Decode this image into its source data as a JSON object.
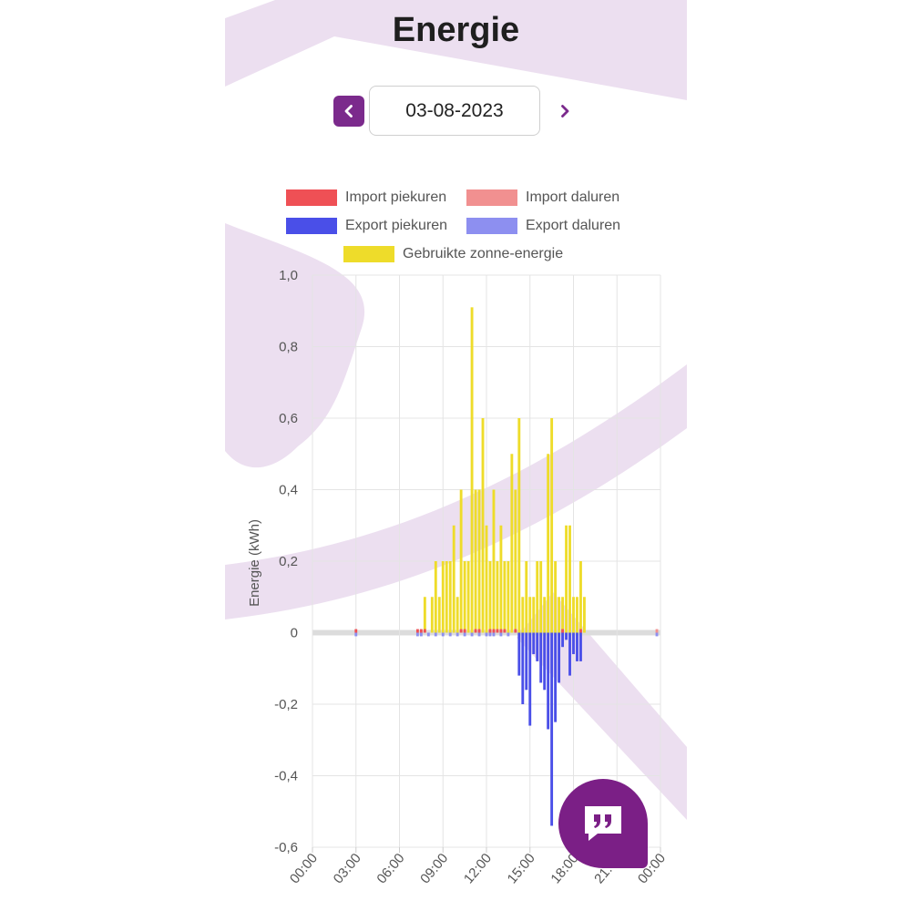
{
  "page": {
    "title": "Energie"
  },
  "date_nav": {
    "date": "03-08-2023",
    "prev_icon": "chevron-left-icon",
    "next_icon": "chevron-right-icon"
  },
  "colors": {
    "import_peak": "#ef5055",
    "import_offpeak": "#f19090",
    "export_peak": "#4a4fe8",
    "export_offpeak": "#8d8ff0",
    "solar": "#eedc2a",
    "accent": "#7b2a8c"
  },
  "fab": {
    "icon": "quote-chat-icon"
  },
  "chart_data": {
    "type": "bar",
    "title": "",
    "xlabel": "",
    "ylabel": "Energie (kWh)",
    "ylim": [
      -0.6,
      1.0
    ],
    "y_ticks": [
      "1,0",
      "0,8",
      "0,6",
      "0,4",
      "0,2",
      "0",
      "-0,2",
      "-0,4",
      "-0,6"
    ],
    "x_ticks": [
      "00:00",
      "03:00",
      "06:00",
      "09:00",
      "12:00",
      "15:00",
      "18:00",
      "21:00",
      "00:00"
    ],
    "x_range_hours": [
      0,
      24
    ],
    "interval_hours": 0.25,
    "legend_position": "top",
    "legend": [
      "Import piekuren",
      "Import daluren",
      "Export piekuren",
      "Export daluren",
      "Gebruikte zonne-energie"
    ],
    "series": [
      {
        "name": "Gebruikte zonne-energie",
        "points": [
          [
            7.75,
            0.1
          ],
          [
            8.25,
            0.1
          ],
          [
            8.5,
            0.2
          ],
          [
            8.75,
            0.1
          ],
          [
            9.0,
            0.2
          ],
          [
            9.25,
            0.2
          ],
          [
            9.5,
            0.2
          ],
          [
            9.75,
            0.3
          ],
          [
            10.0,
            0.1
          ],
          [
            10.25,
            0.4
          ],
          [
            10.5,
            0.2
          ],
          [
            10.75,
            0.2
          ],
          [
            11.0,
            0.91
          ],
          [
            11.25,
            0.4
          ],
          [
            11.5,
            0.4
          ],
          [
            11.75,
            0.6
          ],
          [
            12.0,
            0.3
          ],
          [
            12.25,
            0.2
          ],
          [
            12.5,
            0.4
          ],
          [
            12.75,
            0.2
          ],
          [
            13.0,
            0.3
          ],
          [
            13.25,
            0.2
          ],
          [
            13.5,
            0.2
          ],
          [
            13.75,
            0.5
          ],
          [
            14.0,
            0.4
          ],
          [
            14.25,
            0.6
          ],
          [
            14.5,
            0.1
          ],
          [
            14.75,
            0.2
          ],
          [
            15.0,
            0.1
          ],
          [
            15.25,
            0.1
          ],
          [
            15.5,
            0.2
          ],
          [
            15.75,
            0.2
          ],
          [
            16.0,
            0.1
          ],
          [
            16.25,
            0.5
          ],
          [
            16.5,
            0.6
          ],
          [
            16.75,
            0.2
          ],
          [
            17.0,
            0.1
          ],
          [
            17.25,
            0.1
          ],
          [
            17.5,
            0.3
          ],
          [
            17.75,
            0.3
          ],
          [
            18.0,
            0.1
          ],
          [
            18.25,
            0.1
          ],
          [
            18.5,
            0.2
          ],
          [
            18.75,
            0.1
          ]
        ]
      },
      {
        "name": "Export piekuren",
        "points": [
          [
            14.25,
            -0.12
          ],
          [
            14.5,
            -0.2
          ],
          [
            14.75,
            -0.16
          ],
          [
            15.0,
            -0.26
          ],
          [
            15.25,
            -0.06
          ],
          [
            15.5,
            -0.08
          ],
          [
            15.75,
            -0.14
          ],
          [
            16.0,
            -0.16
          ],
          [
            16.25,
            -0.27
          ],
          [
            16.5,
            -0.54
          ],
          [
            16.75,
            -0.25
          ],
          [
            17.0,
            -0.14
          ],
          [
            17.25,
            -0.04
          ],
          [
            17.5,
            -0.02
          ],
          [
            17.75,
            -0.12
          ],
          [
            18.0,
            -0.06
          ],
          [
            18.25,
            -0.08
          ],
          [
            18.5,
            -0.08
          ]
        ]
      },
      {
        "name": "Export daluren",
        "points": [
          [
            3.0,
            -0.01
          ],
          [
            7.25,
            -0.01
          ],
          [
            7.5,
            -0.01
          ],
          [
            8.0,
            -0.01
          ],
          [
            8.5,
            -0.01
          ],
          [
            9.0,
            -0.01
          ],
          [
            9.5,
            -0.01
          ],
          [
            10.0,
            -0.01
          ],
          [
            10.5,
            -0.01
          ],
          [
            11.0,
            -0.01
          ],
          [
            11.5,
            -0.01
          ],
          [
            12.0,
            -0.01
          ],
          [
            12.25,
            -0.01
          ],
          [
            12.5,
            -0.01
          ],
          [
            13.0,
            -0.01
          ],
          [
            13.5,
            -0.01
          ],
          [
            23.75,
            -0.01
          ]
        ]
      },
      {
        "name": "Import piekuren",
        "points": [
          [
            3.0,
            0.01
          ],
          [
            7.25,
            0.01
          ],
          [
            7.5,
            0.01
          ],
          [
            7.75,
            0.01
          ],
          [
            10.25,
            0.01
          ],
          [
            10.5,
            0.01
          ],
          [
            11.25,
            0.01
          ],
          [
            11.5,
            0.01
          ],
          [
            12.25,
            0.01
          ],
          [
            12.5,
            0.01
          ],
          [
            12.75,
            0.01
          ],
          [
            13.0,
            0.01
          ],
          [
            13.25,
            0.01
          ],
          [
            14.0,
            0.01
          ],
          [
            17.25,
            0.01
          ],
          [
            18.5,
            0.01
          ]
        ]
      },
      {
        "name": "Import daluren",
        "points": [
          [
            23.75,
            0.01
          ]
        ]
      }
    ]
  }
}
